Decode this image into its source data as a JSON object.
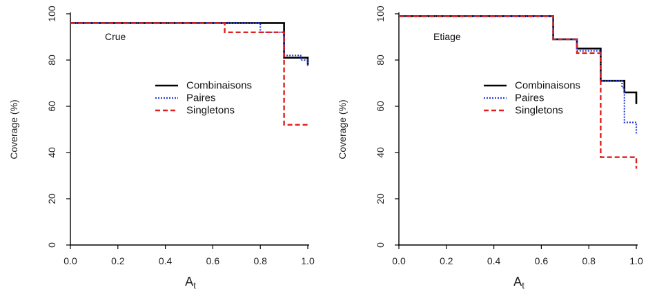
{
  "colors": {
    "Combinaisons": "#000000",
    "Paires": "#2b3fd6",
    "Singletons": "#e01e1e"
  },
  "chart_data": [
    {
      "type": "line",
      "step": true,
      "annotation": "Crue",
      "xlabel": "A",
      "xlabel_sub": "t",
      "ylabel": "Coverage (%)",
      "xlim": [
        0.0,
        1.0
      ],
      "ylim": [
        0,
        100
      ],
      "xticks": [
        "0.0",
        "0.2",
        "0.4",
        "0.6",
        "0.8",
        "1.0"
      ],
      "yticks": [
        "0",
        "20",
        "40",
        "60",
        "80",
        "100"
      ],
      "legend": [
        "Combinaisons",
        "Paires",
        "Singletons"
      ],
      "legend_position": "center-right",
      "series": [
        {
          "name": "Combinaisons",
          "style": "solid",
          "x": [
            0.0,
            0.9,
            0.9,
            1.0,
            1.0
          ],
          "y": [
            96,
            96,
            81,
            81,
            78
          ]
        },
        {
          "name": "Paires",
          "style": "dotted",
          "x": [
            0.0,
            0.8,
            0.8,
            0.9,
            0.9,
            0.97,
            0.97,
            1.0,
            1.0
          ],
          "y": [
            96,
            96,
            92,
            92,
            82,
            82,
            80,
            80,
            77
          ]
        },
        {
          "name": "Singletons",
          "style": "dashed",
          "x": [
            0.0,
            0.65,
            0.65,
            0.9,
            0.9,
            1.0
          ],
          "y": [
            96,
            96,
            92,
            92,
            52,
            52
          ]
        }
      ]
    },
    {
      "type": "line",
      "step": true,
      "annotation": "Etiage",
      "xlabel": "A",
      "xlabel_sub": "t",
      "ylabel": "Coverage (%)",
      "xlim": [
        0.0,
        1.0
      ],
      "ylim": [
        0,
        100
      ],
      "xticks": [
        "0.0",
        "0.2",
        "0.4",
        "0.6",
        "0.8",
        "1.0"
      ],
      "yticks": [
        "0",
        "20",
        "40",
        "60",
        "80",
        "100"
      ],
      "legend": [
        "Combinaisons",
        "Paires",
        "Singletons"
      ],
      "legend_position": "center-right",
      "series": [
        {
          "name": "Combinaisons",
          "style": "solid",
          "x": [
            0.0,
            0.65,
            0.65,
            0.75,
            0.75,
            0.85,
            0.85,
            0.95,
            0.95,
            1.0,
            1.0
          ],
          "y": [
            99,
            99,
            89,
            89,
            85,
            85,
            71,
            71,
            66,
            66,
            61
          ]
        },
        {
          "name": "Paires",
          "style": "dotted",
          "x": [
            0.0,
            0.65,
            0.65,
            0.75,
            0.75,
            0.85,
            0.85,
            0.94,
            0.94,
            0.95,
            0.95,
            1.0,
            1.0
          ],
          "y": [
            99,
            99,
            89,
            89,
            84,
            84,
            71,
            71,
            68,
            68,
            53,
            53,
            48
          ]
        },
        {
          "name": "Singletons",
          "style": "dashed",
          "x": [
            0.0,
            0.65,
            0.65,
            0.75,
            0.75,
            0.85,
            0.85,
            1.0,
            1.0
          ],
          "y": [
            99,
            99,
            89,
            89,
            83,
            83,
            38,
            38,
            33
          ]
        }
      ]
    }
  ]
}
